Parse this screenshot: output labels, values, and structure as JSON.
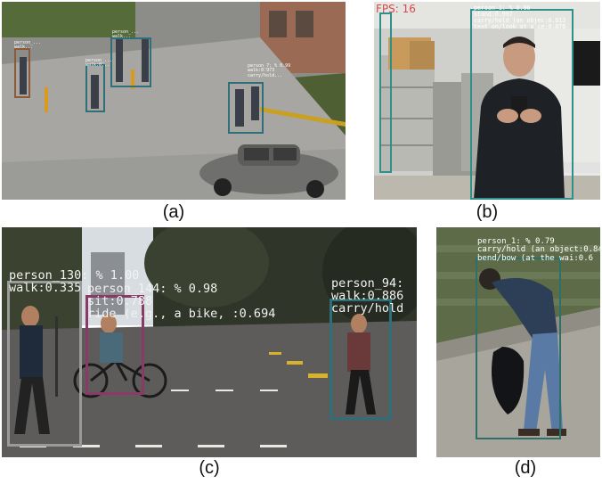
{
  "panels": {
    "a": {
      "caption": "(a)",
      "box_color": "#2f6f7a",
      "labels": [
        {
          "lines": [
            "person_...",
            "walk..."
          ]
        },
        {
          "lines": [
            "person_...",
            "walk:0..."
          ]
        },
        {
          "lines": [
            "person_...",
            "walk..."
          ]
        },
        {
          "lines": [
            "person_7: % 0.99",
            "walk:0.973",
            "carry/hold..."
          ]
        }
      ]
    },
    "b": {
      "caption": "(b)",
      "fps_text": "FPS: 16",
      "box_color": "#2f8f8a",
      "labels": [
        {
          "lines": [
            "person_1: % 0.96",
            "stand:0.997",
            "carry/hold (an objec:0.913",
            "text on/look at a ce:0.876"
          ]
        }
      ]
    },
    "c": {
      "caption": "(c)",
      "labels": [
        {
          "lines": [
            "person_130: % 1.00",
            "walk:0.335"
          ],
          "color": "#9a9a9a"
        },
        {
          "lines": [
            "person_144: % 0.98",
            "sit:0.788",
            "ride (e.g., a bike, :0.694"
          ],
          "color": "#8a3a66"
        },
        {
          "lines": [
            "person_94:",
            "walk:0.886",
            "carry/hold"
          ],
          "color": "#2f6f7a"
        }
      ]
    },
    "d": {
      "caption": "(d)",
      "box_color": "#2f6f6a",
      "labels": [
        {
          "lines": [
            "person_1: % 0.79",
            "carry/hold (an object:0.84",
            "bend/bow (at the wai:0.6"
          ]
        }
      ]
    }
  }
}
